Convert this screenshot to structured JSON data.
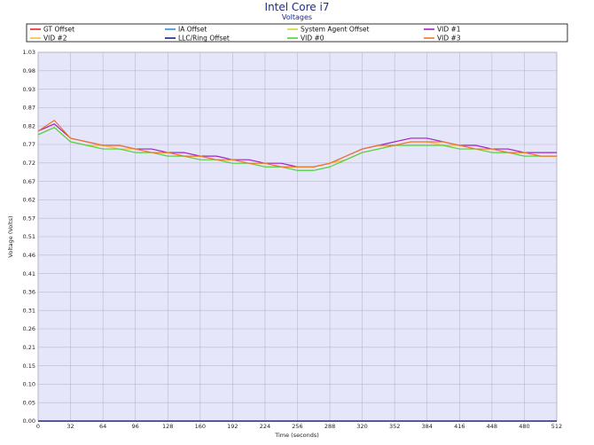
{
  "chart_data": {
    "type": "line",
    "title": "Intel Core i7",
    "subtitle": "Voltages",
    "xlabel": "Time (seconds)",
    "ylabel": "Voltage (Volts)",
    "xlim": [
      0,
      512
    ],
    "ylim": [
      0,
      1.03
    ],
    "x_ticks": [
      "0",
      "32",
      "64",
      "96",
      "128",
      "160",
      "192",
      "224",
      "256",
      "288",
      "320",
      "352",
      "384",
      "416",
      "448",
      "480",
      "512"
    ],
    "y_ticks": [
      "0.00",
      "0.05",
      "0.10",
      "0.15",
      "0.21",
      "0.26",
      "0.31",
      "0.36",
      "0.41",
      "0.46",
      "0.51",
      "0.57",
      "0.62",
      "0.67",
      "0.72",
      "0.77",
      "0.82",
      "0.87",
      "0.93",
      "0.98",
      "1.03"
    ],
    "grid": true,
    "legend_position": "top",
    "x": [
      0,
      16,
      32,
      48,
      64,
      80,
      96,
      112,
      128,
      144,
      160,
      176,
      192,
      208,
      224,
      240,
      256,
      272,
      288,
      304,
      320,
      336,
      352,
      368,
      384,
      400,
      416,
      432,
      448,
      464,
      480,
      496,
      512
    ],
    "series": [
      {
        "name": "GT Offset",
        "color": "#e8262a",
        "values": [
          0,
          0,
          0,
          0,
          0,
          0,
          0,
          0,
          0,
          0,
          0,
          0,
          0,
          0,
          0,
          0,
          0,
          0,
          0,
          0,
          0,
          0,
          0,
          0,
          0,
          0,
          0,
          0,
          0,
          0,
          0,
          0,
          0
        ]
      },
      {
        "name": "IA Offset",
        "color": "#2e8fc9",
        "values": [
          0,
          0,
          0,
          0,
          0,
          0,
          0,
          0,
          0,
          0,
          0,
          0,
          0,
          0,
          0,
          0,
          0,
          0,
          0,
          0,
          0,
          0,
          0,
          0,
          0,
          0,
          0,
          0,
          0,
          0,
          0,
          0,
          0
        ]
      },
      {
        "name": "System Agent Offset",
        "color": "#c8d83a",
        "values": [
          0,
          0,
          0,
          0,
          0,
          0,
          0,
          0,
          0,
          0,
          0,
          0,
          0,
          0,
          0,
          0,
          0,
          0,
          0,
          0,
          0,
          0,
          0,
          0,
          0,
          0,
          0,
          0,
          0,
          0,
          0,
          0,
          0
        ]
      },
      {
        "name": "VID #1",
        "color": "#a020c0",
        "values": [
          0.81,
          0.83,
          0.79,
          0.78,
          0.77,
          0.77,
          0.76,
          0.76,
          0.75,
          0.75,
          0.74,
          0.74,
          0.73,
          0.73,
          0.72,
          0.72,
          0.71,
          0.71,
          0.72,
          0.74,
          0.76,
          0.77,
          0.78,
          0.79,
          0.79,
          0.78,
          0.77,
          0.77,
          0.76,
          0.76,
          0.75,
          0.75,
          0.75
        ]
      },
      {
        "name": "VID #2",
        "color": "#f0c040",
        "values": [
          0.8,
          0.82,
          0.78,
          0.77,
          0.77,
          0.76,
          0.76,
          0.75,
          0.75,
          0.74,
          0.74,
          0.73,
          0.73,
          0.72,
          0.72,
          0.71,
          0.71,
          0.71,
          0.72,
          0.73,
          0.75,
          0.76,
          0.77,
          0.78,
          0.78,
          0.77,
          0.77,
          0.76,
          0.76,
          0.75,
          0.75,
          0.74,
          0.74
        ]
      },
      {
        "name": "LLC/Ring Offset",
        "color": "#1c1c8c",
        "values": [
          0,
          0,
          0,
          0,
          0,
          0,
          0,
          0,
          0,
          0,
          0,
          0,
          0,
          0,
          0,
          0,
          0,
          0,
          0,
          0,
          0,
          0,
          0,
          0,
          0,
          0,
          0,
          0,
          0,
          0,
          0,
          0,
          0
        ]
      },
      {
        "name": "VID #0",
        "color": "#50d040",
        "values": [
          0.8,
          0.82,
          0.78,
          0.77,
          0.76,
          0.76,
          0.75,
          0.75,
          0.74,
          0.74,
          0.73,
          0.73,
          0.72,
          0.72,
          0.71,
          0.71,
          0.7,
          0.7,
          0.71,
          0.73,
          0.75,
          0.76,
          0.77,
          0.77,
          0.77,
          0.77,
          0.76,
          0.76,
          0.75,
          0.75,
          0.74,
          0.74,
          0.74
        ]
      },
      {
        "name": "VID #3",
        "color": "#f07820",
        "values": [
          0.81,
          0.84,
          0.79,
          0.78,
          0.77,
          0.77,
          0.76,
          0.75,
          0.75,
          0.74,
          0.74,
          0.73,
          0.73,
          0.72,
          0.72,
          0.71,
          0.71,
          0.71,
          0.72,
          0.74,
          0.76,
          0.77,
          0.77,
          0.78,
          0.78,
          0.78,
          0.77,
          0.76,
          0.76,
          0.75,
          0.75,
          0.74,
          0.74
        ]
      }
    ]
  }
}
